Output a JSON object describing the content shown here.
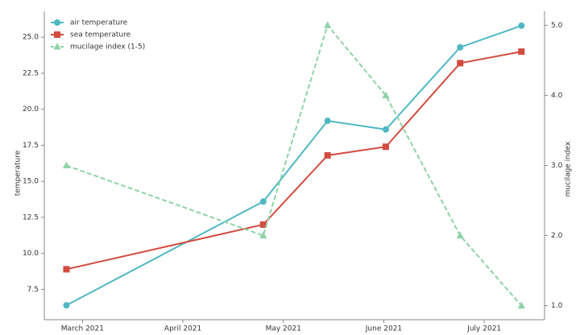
{
  "chart_data": {
    "type": "line",
    "x": [
      -0.16,
      1.8,
      2.44,
      3.02,
      3.76,
      4.37
    ],
    "xlim": [
      -0.38,
      4.6
    ],
    "xticks": [
      {
        "value": 0,
        "label": "March 2021"
      },
      {
        "value": 1,
        "label": "April 2021"
      },
      {
        "value": 2,
        "label": "May 2021"
      },
      {
        "value": 3,
        "label": "June 2021"
      },
      {
        "value": 4,
        "label": "July 2021"
      }
    ],
    "ylabel": "temperature",
    "y2label": "mucilage index",
    "ylim": [
      5.4,
      26.8
    ],
    "yticks": [
      {
        "value": 7.5,
        "label": "7.5"
      },
      {
        "value": 10,
        "label": "10.0"
      },
      {
        "value": 12.5,
        "label": "12.5"
      },
      {
        "value": 15,
        "label": "15.0"
      },
      {
        "value": 17.5,
        "label": "17.5"
      },
      {
        "value": 20,
        "label": "20.0"
      },
      {
        "value": 22.5,
        "label": "22.5"
      },
      {
        "value": 25,
        "label": "25.0"
      }
    ],
    "y2lim": [
      0.8,
      5.2
    ],
    "y2ticks": [
      {
        "value": 1,
        "label": "1.0"
      },
      {
        "value": 2,
        "label": "2.0"
      },
      {
        "value": 3,
        "label": "3.0"
      },
      {
        "value": 4,
        "label": "4.0"
      },
      {
        "value": 5,
        "label": "5.0"
      }
    ],
    "legend": "upper left",
    "series": [
      {
        "name": "air temperature",
        "color": "#4fb8c4",
        "marker": "circle",
        "values": [
          6.4,
          13.6,
          19.2,
          18.6,
          24.3,
          25.8
        ]
      },
      {
        "name": "sea temperature",
        "color": "#d24c3f",
        "marker": "square",
        "values": [
          8.9,
          12.0,
          16.8,
          17.4,
          23.2,
          24.0
        ]
      },
      {
        "name": "mucilage index (1-5)",
        "color": "#8fd3a8",
        "marker": "triangle",
        "dashed": true,
        "axis": "y2",
        "values": [
          3,
          2,
          5,
          4,
          2,
          1
        ]
      }
    ]
  }
}
